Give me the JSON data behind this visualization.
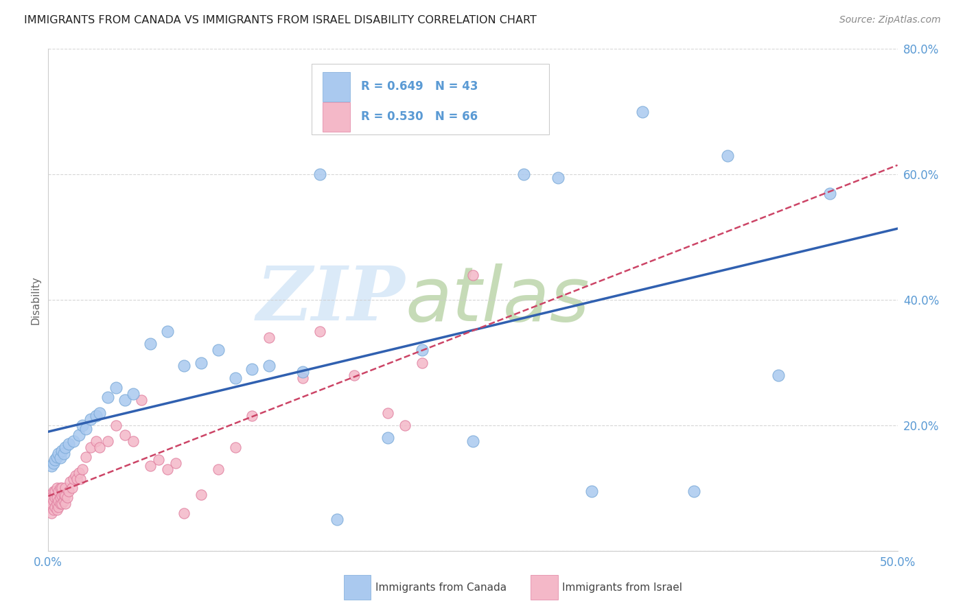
{
  "title": "IMMIGRANTS FROM CANADA VS IMMIGRANTS FROM ISRAEL DISABILITY CORRELATION CHART",
  "source": "Source: ZipAtlas.com",
  "ylabel": "Disability",
  "xlim": [
    0.0,
    0.5
  ],
  "ylim": [
    0.0,
    0.8
  ],
  "xticks": [
    0.0,
    0.1,
    0.2,
    0.3,
    0.4,
    0.5
  ],
  "xticklabels": [
    "0.0%",
    "",
    "",
    "",
    "",
    "50.0%"
  ],
  "yticks": [
    0.0,
    0.2,
    0.4,
    0.6,
    0.8
  ],
  "yticklabels": [
    "",
    "20.0%",
    "40.0%",
    "60.0%",
    "80.0%"
  ],
  "tick_color": "#5a9ad4",
  "canada_color": "#aac9ef",
  "canada_edge_color": "#7baad8",
  "israel_color": "#f4b8c8",
  "israel_edge_color": "#e080a0",
  "canada_line_color": "#3060b0",
  "israel_line_color": "#cc4466",
  "grid_color": "#cccccc",
  "bg_color": "#ffffff",
  "watermark_zip": "ZIP",
  "watermark_atlas": "atlas",
  "watermark_color_zip": "#d8e8f8",
  "watermark_color_atlas": "#c0d8b0",
  "legend_R_canada": "R = 0.649",
  "legend_N_canada": "N = 43",
  "legend_R_israel": "R = 0.530",
  "legend_N_israel": "N = 66",
  "legend_label_canada": "Immigrants from Canada",
  "legend_label_israel": "Immigrants from Israel",
  "canada_x": [
    0.002,
    0.003,
    0.004,
    0.005,
    0.006,
    0.007,
    0.008,
    0.009,
    0.01,
    0.012,
    0.015,
    0.018,
    0.02,
    0.022,
    0.025,
    0.028,
    0.03,
    0.035,
    0.04,
    0.045,
    0.05,
    0.06,
    0.07,
    0.08,
    0.09,
    0.1,
    0.11,
    0.12,
    0.13,
    0.15,
    0.16,
    0.17,
    0.2,
    0.22,
    0.25,
    0.28,
    0.3,
    0.32,
    0.35,
    0.38,
    0.4,
    0.43,
    0.46
  ],
  "canada_y": [
    0.135,
    0.14,
    0.145,
    0.15,
    0.155,
    0.148,
    0.16,
    0.155,
    0.165,
    0.17,
    0.175,
    0.185,
    0.2,
    0.195,
    0.21,
    0.215,
    0.22,
    0.245,
    0.26,
    0.24,
    0.25,
    0.33,
    0.35,
    0.295,
    0.3,
    0.32,
    0.275,
    0.29,
    0.295,
    0.285,
    0.6,
    0.05,
    0.18,
    0.32,
    0.175,
    0.6,
    0.595,
    0.095,
    0.7,
    0.095,
    0.63,
    0.28,
    0.57
  ],
  "israel_x": [
    0.001,
    0.001,
    0.001,
    0.002,
    0.002,
    0.002,
    0.003,
    0.003,
    0.003,
    0.004,
    0.004,
    0.004,
    0.005,
    0.005,
    0.005,
    0.005,
    0.006,
    0.006,
    0.006,
    0.007,
    0.007,
    0.007,
    0.008,
    0.008,
    0.008,
    0.009,
    0.009,
    0.01,
    0.01,
    0.01,
    0.011,
    0.012,
    0.013,
    0.014,
    0.015,
    0.016,
    0.017,
    0.018,
    0.019,
    0.02,
    0.022,
    0.025,
    0.028,
    0.03,
    0.035,
    0.04,
    0.045,
    0.05,
    0.055,
    0.06,
    0.065,
    0.07,
    0.075,
    0.08,
    0.09,
    0.1,
    0.11,
    0.12,
    0.13,
    0.15,
    0.16,
    0.18,
    0.2,
    0.21,
    0.22,
    0.25
  ],
  "israel_y": [
    0.07,
    0.08,
    0.09,
    0.06,
    0.075,
    0.085,
    0.065,
    0.08,
    0.095,
    0.07,
    0.085,
    0.095,
    0.065,
    0.075,
    0.085,
    0.1,
    0.07,
    0.08,
    0.095,
    0.075,
    0.085,
    0.1,
    0.075,
    0.088,
    0.1,
    0.08,
    0.09,
    0.075,
    0.088,
    0.1,
    0.085,
    0.095,
    0.11,
    0.1,
    0.115,
    0.12,
    0.115,
    0.125,
    0.115,
    0.13,
    0.15,
    0.165,
    0.175,
    0.165,
    0.175,
    0.2,
    0.185,
    0.175,
    0.24,
    0.135,
    0.145,
    0.13,
    0.14,
    0.06,
    0.09,
    0.13,
    0.165,
    0.215,
    0.34,
    0.275,
    0.35,
    0.28,
    0.22,
    0.2,
    0.3,
    0.44
  ]
}
